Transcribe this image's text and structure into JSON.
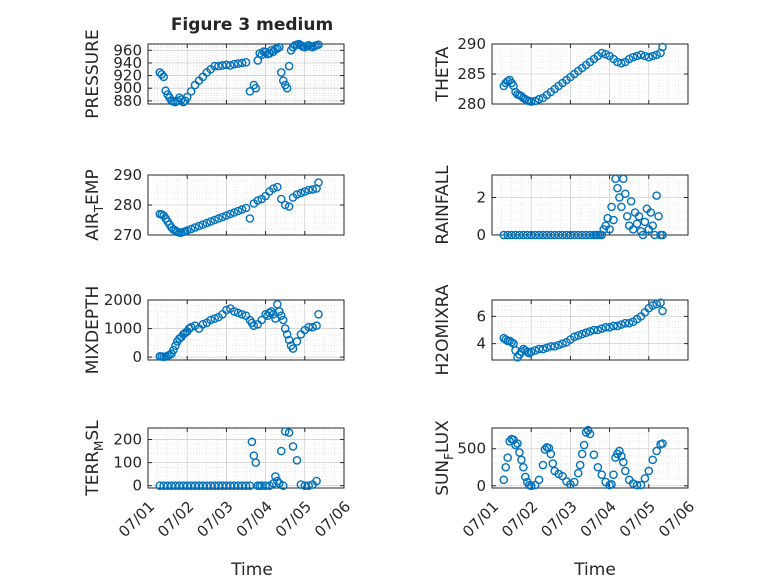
{
  "figure": {
    "title": "Figure 3 medium",
    "xlabel": "Time"
  },
  "colors": {
    "marker": "#0072BD",
    "axis": "#262626",
    "grid": "#d0d0d0",
    "background": "#ffffff"
  },
  "x_axis": {
    "type": "date",
    "range": [
      "07/01",
      "07/06"
    ],
    "tick_labels": [
      "07/01",
      "07/02",
      "07/03",
      "07/04",
      "07/05",
      "07/06"
    ]
  },
  "chart_data": [
    {
      "type": "scatter",
      "ylabel": "PRESSURE",
      "ylim": [
        875,
        970
      ],
      "yticks": [
        880,
        900,
        920,
        940,
        960
      ],
      "grid": true,
      "x": [
        1.3,
        1.35,
        1.4,
        1.45,
        1.5,
        1.55,
        1.6,
        1.65,
        1.7,
        1.75,
        1.8,
        1.85,
        1.9,
        1.95,
        2.0,
        2.1,
        2.2,
        2.3,
        2.4,
        2.5,
        2.6,
        2.7,
        2.8,
        2.9,
        3.0,
        3.1,
        3.2,
        3.3,
        3.4,
        3.5,
        3.6,
        3.7,
        3.75,
        3.8,
        3.85,
        3.9,
        3.95,
        4.0,
        4.05,
        4.1,
        4.15,
        4.2,
        4.25,
        4.3,
        4.35,
        4.4,
        4.45,
        4.5,
        4.55,
        4.6,
        4.65,
        4.7,
        4.75,
        4.8,
        4.85,
        4.9,
        4.95,
        5.0,
        5.05,
        5.1,
        5.15,
        5.2,
        5.25,
        5.3,
        5.35
      ],
      "y": [
        925,
        922,
        918,
        896,
        890,
        885,
        880,
        879,
        878,
        880,
        885,
        882,
        878,
        880,
        886,
        895,
        905,
        912,
        918,
        925,
        930,
        935,
        935,
        936,
        937,
        936,
        938,
        939,
        940,
        941,
        895,
        905,
        900,
        944,
        955,
        953,
        958,
        957,
        954,
        955,
        960,
        958,
        962,
        963,
        965,
        925,
        912,
        905,
        900,
        935,
        960,
        965,
        968,
        969,
        970,
        968,
        966,
        965,
        967,
        968,
        966,
        965,
        967,
        968,
        969
      ]
    },
    {
      "type": "scatter",
      "ylabel": "THETA",
      "ylim": [
        280,
        290
      ],
      "yticks": [
        280,
        285,
        290
      ],
      "grid": true,
      "x": [
        1.3,
        1.35,
        1.4,
        1.45,
        1.5,
        1.55,
        1.6,
        1.65,
        1.7,
        1.75,
        1.8,
        1.85,
        1.9,
        1.95,
        2.0,
        2.1,
        2.2,
        2.3,
        2.4,
        2.5,
        2.6,
        2.7,
        2.8,
        2.9,
        3.0,
        3.1,
        3.2,
        3.3,
        3.4,
        3.5,
        3.6,
        3.7,
        3.8,
        3.9,
        4.0,
        4.1,
        4.2,
        4.3,
        4.4,
        4.5,
        4.6,
        4.7,
        4.8,
        4.9,
        5.0,
        5.1,
        5.2,
        5.3,
        5.35
      ],
      "y": [
        283.0,
        283.5,
        283.8,
        284.0,
        283.5,
        283.0,
        282.0,
        281.6,
        281.5,
        281.3,
        281.0,
        280.8,
        280.6,
        280.5,
        280.4,
        280.5,
        280.8,
        281.0,
        281.5,
        282.0,
        282.5,
        283.0,
        283.5,
        284.0,
        284.5,
        285.0,
        285.5,
        286.0,
        286.5,
        287.0,
        287.5,
        288.0,
        288.5,
        288.3,
        288.0,
        287.5,
        287.0,
        286.8,
        287.0,
        287.5,
        287.8,
        288.0,
        288.2,
        288.0,
        287.8,
        288.0,
        288.2,
        288.5,
        289.5
      ]
    },
    {
      "type": "scatter",
      "ylabel": "AIR_TEMP",
      "ylabel_parts": [
        "AIR",
        "T",
        "EMP"
      ],
      "ylim": [
        270,
        290
      ],
      "yticks": [
        270,
        280,
        290
      ],
      "grid": true,
      "x": [
        1.3,
        1.35,
        1.4,
        1.45,
        1.5,
        1.55,
        1.6,
        1.65,
        1.7,
        1.75,
        1.8,
        1.85,
        1.9,
        1.95,
        2.0,
        2.1,
        2.2,
        2.3,
        2.4,
        2.5,
        2.6,
        2.7,
        2.8,
        2.9,
        3.0,
        3.1,
        3.2,
        3.3,
        3.4,
        3.5,
        3.6,
        3.7,
        3.8,
        3.9,
        4.0,
        4.1,
        4.2,
        4.3,
        4.4,
        4.5,
        4.6,
        4.7,
        4.8,
        4.9,
        5.0,
        5.1,
        5.2,
        5.3,
        5.35
      ],
      "y": [
        277.0,
        276.8,
        276.5,
        275.5,
        274.5,
        273.5,
        272.5,
        271.8,
        271.5,
        271.0,
        270.8,
        270.8,
        271.0,
        271.2,
        271.5,
        272.0,
        272.5,
        273.0,
        273.5,
        274.0,
        274.5,
        275.0,
        275.5,
        276.0,
        276.5,
        277.0,
        277.5,
        278.0,
        278.5,
        279.0,
        275.5,
        280.5,
        281.5,
        282.0,
        283.0,
        284.5,
        285.5,
        286.0,
        282.0,
        280.0,
        279.5,
        282.5,
        283.5,
        284.0,
        284.5,
        285.0,
        285.2,
        285.5,
        287.5
      ]
    },
    {
      "type": "scatter",
      "ylabel": "RAINFALL",
      "ylim": [
        0,
        3.2
      ],
      "yticks": [
        0,
        2
      ],
      "grid": true,
      "x": [
        1.3,
        1.4,
        1.5,
        1.6,
        1.7,
        1.8,
        1.9,
        2.0,
        2.1,
        2.2,
        2.3,
        2.4,
        2.5,
        2.6,
        2.7,
        2.8,
        2.9,
        3.0,
        3.1,
        3.2,
        3.3,
        3.4,
        3.5,
        3.6,
        3.65,
        3.7,
        3.75,
        3.8,
        3.85,
        3.9,
        3.95,
        4.0,
        4.05,
        4.1,
        4.15,
        4.2,
        4.25,
        4.3,
        4.35,
        4.4,
        4.45,
        4.5,
        4.55,
        4.6,
        4.65,
        4.7,
        4.75,
        4.8,
        4.85,
        4.9,
        4.95,
        5.0,
        5.05,
        5.1,
        5.15,
        5.2,
        5.25,
        5.3,
        5.35
      ],
      "y": [
        0,
        0,
        0,
        0,
        0,
        0,
        0,
        0,
        0,
        0,
        0,
        0,
        0,
        0,
        0,
        0,
        0,
        0,
        0,
        0,
        0,
        0,
        0,
        0,
        0,
        0,
        0,
        0,
        0.3,
        0.5,
        0.9,
        0.3,
        1.5,
        0.8,
        3.0,
        2.5,
        2.0,
        1.5,
        3.0,
        2.2,
        1.0,
        0.5,
        1.8,
        0.3,
        1.2,
        0.6,
        1.0,
        0.2,
        0,
        0.7,
        1.4,
        0.3,
        1.2,
        0.5,
        0,
        2.1,
        1.0,
        0,
        0
      ]
    },
    {
      "type": "scatter",
      "ylabel": "MIXDEPTH",
      "ylim": [
        -100,
        2000
      ],
      "yticks": [
        0,
        1000,
        2000
      ],
      "grid": true,
      "x": [
        1.3,
        1.35,
        1.4,
        1.45,
        1.5,
        1.55,
        1.6,
        1.65,
        1.7,
        1.75,
        1.8,
        1.85,
        1.9,
        1.95,
        2.0,
        2.05,
        2.1,
        2.2,
        2.3,
        2.4,
        2.5,
        2.6,
        2.7,
        2.8,
        2.9,
        3.0,
        3.1,
        3.2,
        3.3,
        3.4,
        3.5,
        3.6,
        3.65,
        3.7,
        3.8,
        3.9,
        4.0,
        4.05,
        4.1,
        4.15,
        4.2,
        4.25,
        4.3,
        4.35,
        4.4,
        4.45,
        4.5,
        4.55,
        4.6,
        4.65,
        4.7,
        4.8,
        4.9,
        5.0,
        5.1,
        5.2,
        5.3,
        5.35
      ],
      "y": [
        30,
        20,
        10,
        20,
        40,
        80,
        120,
        250,
        400,
        550,
        650,
        700,
        800,
        850,
        900,
        1000,
        1050,
        1100,
        1000,
        1150,
        1200,
        1300,
        1350,
        1400,
        1500,
        1650,
        1700,
        1600,
        1550,
        1500,
        1450,
        1300,
        1200,
        1100,
        1150,
        1300,
        1500,
        1450,
        1550,
        1600,
        1500,
        1350,
        1850,
        1600,
        1450,
        1300,
        1000,
        800,
        600,
        400,
        300,
        550,
        800,
        950,
        1050,
        1050,
        1100,
        1500
      ]
    },
    {
      "type": "scatter",
      "ylabel": "H2OMIXRA",
      "ylim": [
        2.8,
        7.2
      ],
      "yticks": [
        4,
        6
      ],
      "grid": true,
      "x": [
        1.3,
        1.35,
        1.4,
        1.45,
        1.5,
        1.55,
        1.6,
        1.65,
        1.7,
        1.75,
        1.8,
        1.85,
        1.9,
        1.95,
        2.0,
        2.1,
        2.2,
        2.3,
        2.4,
        2.5,
        2.6,
        2.7,
        2.8,
        2.9,
        3.0,
        3.1,
        3.2,
        3.3,
        3.4,
        3.5,
        3.6,
        3.7,
        3.8,
        3.9,
        4.0,
        4.1,
        4.2,
        4.3,
        4.4,
        4.5,
        4.6,
        4.7,
        4.8,
        4.9,
        5.0,
        5.1,
        5.2,
        5.3,
        5.35
      ],
      "y": [
        4.4,
        4.3,
        4.2,
        4.2,
        4.1,
        4.0,
        3.5,
        3.0,
        3.2,
        3.4,
        3.6,
        3.5,
        3.4,
        3.3,
        3.4,
        3.5,
        3.6,
        3.6,
        3.7,
        3.8,
        3.8,
        3.9,
        4.0,
        4.1,
        4.3,
        4.5,
        4.6,
        4.7,
        4.8,
        4.9,
        5.0,
        5.0,
        5.1,
        5.2,
        5.2,
        5.3,
        5.3,
        5.4,
        5.5,
        5.5,
        5.6,
        5.8,
        6.0,
        6.3,
        6.6,
        6.8,
        6.9,
        7.0,
        6.4
      ]
    },
    {
      "type": "scatter",
      "ylabel": "TERR_MSL",
      "ylabel_parts": [
        "TERR",
        "M",
        "SL"
      ],
      "ylim": [
        -10,
        250
      ],
      "yticks": [
        0,
        100,
        200
      ],
      "grid": true,
      "x": [
        1.3,
        1.4,
        1.5,
        1.6,
        1.7,
        1.8,
        1.9,
        2.0,
        2.1,
        2.2,
        2.3,
        2.4,
        2.5,
        2.6,
        2.7,
        2.8,
        2.9,
        3.0,
        3.1,
        3.2,
        3.3,
        3.4,
        3.5,
        3.6,
        3.65,
        3.7,
        3.75,
        3.8,
        3.85,
        3.9,
        4.0,
        4.1,
        4.2,
        4.25,
        4.3,
        4.35,
        4.4,
        4.45,
        4.5,
        4.6,
        4.7,
        4.8,
        4.9,
        5.0,
        5.1,
        5.2,
        5.3
      ],
      "y": [
        0,
        0,
        0,
        0,
        0,
        0,
        0,
        0,
        0,
        0,
        0,
        0,
        0,
        0,
        0,
        0,
        0,
        0,
        0,
        0,
        0,
        0,
        0,
        0,
        190,
        130,
        100,
        0,
        0,
        0,
        0,
        0,
        10,
        40,
        20,
        10,
        150,
        0,
        235,
        230,
        170,
        110,
        5,
        0,
        0,
        5,
        20
      ]
    },
    {
      "type": "scatter",
      "ylabel": "SUN_FLUX",
      "ylabel_parts": [
        "SUN",
        "F",
        "LUX"
      ],
      "ylim": [
        -30,
        780
      ],
      "yticks": [
        0,
        500
      ],
      "grid": true,
      "x": [
        1.3,
        1.35,
        1.4,
        1.45,
        1.5,
        1.55,
        1.6,
        1.65,
        1.7,
        1.75,
        1.8,
        1.85,
        1.9,
        1.95,
        2.0,
        2.1,
        2.2,
        2.3,
        2.35,
        2.4,
        2.45,
        2.5,
        2.55,
        2.6,
        2.7,
        2.8,
        2.9,
        3.0,
        3.1,
        3.2,
        3.25,
        3.3,
        3.35,
        3.4,
        3.45,
        3.5,
        3.6,
        3.7,
        3.8,
        3.9,
        4.0,
        4.05,
        4.1,
        4.15,
        4.2,
        4.25,
        4.3,
        4.35,
        4.4,
        4.5,
        4.6,
        4.7,
        4.8,
        4.9,
        5.0,
        5.1,
        5.2,
        5.3,
        5.35
      ],
      "y": [
        80,
        250,
        380,
        600,
        630,
        620,
        550,
        570,
        450,
        350,
        250,
        120,
        50,
        10,
        0,
        10,
        80,
        280,
        490,
        520,
        510,
        430,
        300,
        200,
        160,
        130,
        60,
        20,
        50,
        170,
        280,
        430,
        550,
        720,
        750,
        700,
        420,
        250,
        150,
        50,
        10,
        20,
        150,
        380,
        430,
        470,
        400,
        320,
        200,
        80,
        30,
        10,
        10,
        100,
        200,
        350,
        470,
        560,
        570
      ]
    }
  ]
}
